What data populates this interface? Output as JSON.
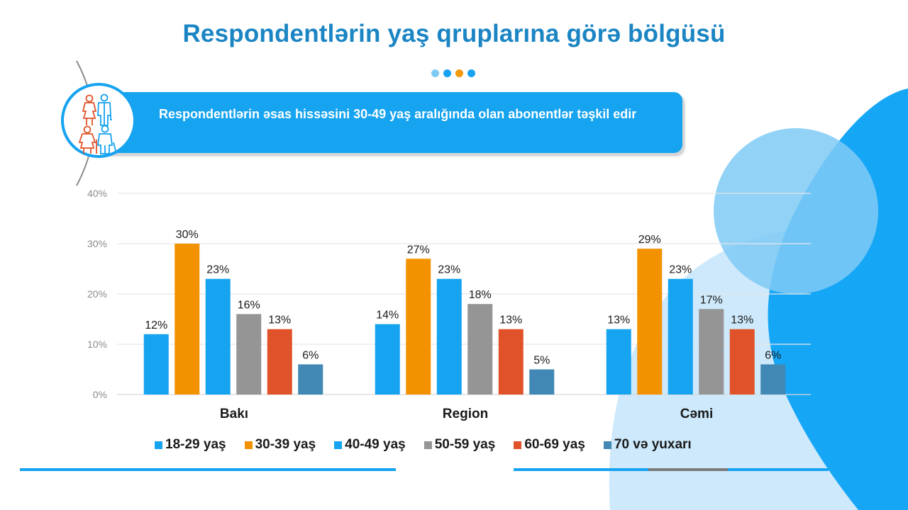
{
  "page": {
    "title": "Respondentlərin yaş qruplarına görə bölgüsü",
    "banner_text": "Respondentlərin əsas hissəsini 30-49 yaş aralığında olan abonentlər təşkil edir",
    "icon": "elderly-couples-icon",
    "dots": [
      "#7fcaf3",
      "#16a3f0",
      "#f49a0b",
      "#16a3f0"
    ],
    "colors": {
      "title": "#1b85c4",
      "banner": "#16a3f0",
      "background_shape_dark": "#16a6f6",
      "background_shape_light": "#cde9fb",
      "background_circle": "#7fcaf6"
    }
  },
  "chart_data": {
    "type": "bar",
    "title": "",
    "xlabel": "",
    "ylabel": "",
    "categories": [
      "Bakı",
      "Region",
      "Cəmi"
    ],
    "ylim": [
      0,
      40
    ],
    "yticks": [
      "0%",
      "10%",
      "20%",
      "30%",
      "40%"
    ],
    "ytick_values": [
      0,
      10,
      20,
      30,
      40
    ],
    "grid": true,
    "legend_position": "bottom",
    "series": [
      {
        "name": "18-29 yaş",
        "color": "#16a3f0",
        "values": [
          12,
          14,
          13
        ],
        "labels": [
          "12%",
          "14%",
          "13%"
        ]
      },
      {
        "name": "30-39 yaş",
        "color": "#f39200",
        "values": [
          30,
          27,
          29
        ],
        "labels": [
          "30%",
          "27%",
          "29%"
        ]
      },
      {
        "name": "40-49 yaş",
        "color": "#16a3f0",
        "values": [
          23,
          23,
          23
        ],
        "labels": [
          "23%",
          "23%",
          "23%"
        ]
      },
      {
        "name": "50-59 yaş",
        "color": "#959595",
        "values": [
          16,
          18,
          17
        ],
        "labels": [
          "16%",
          "18%",
          "17%"
        ]
      },
      {
        "name": "60-69 yaş",
        "color": "#e0532a",
        "values": [
          13,
          13,
          13
        ],
        "labels": [
          "13%",
          "13%",
          "13%"
        ]
      },
      {
        "name": "70 və yuxarı",
        "color": "#4188b5",
        "values": [
          6,
          5,
          6
        ],
        "labels": [
          "6%",
          "5%",
          "6%"
        ]
      }
    ]
  }
}
